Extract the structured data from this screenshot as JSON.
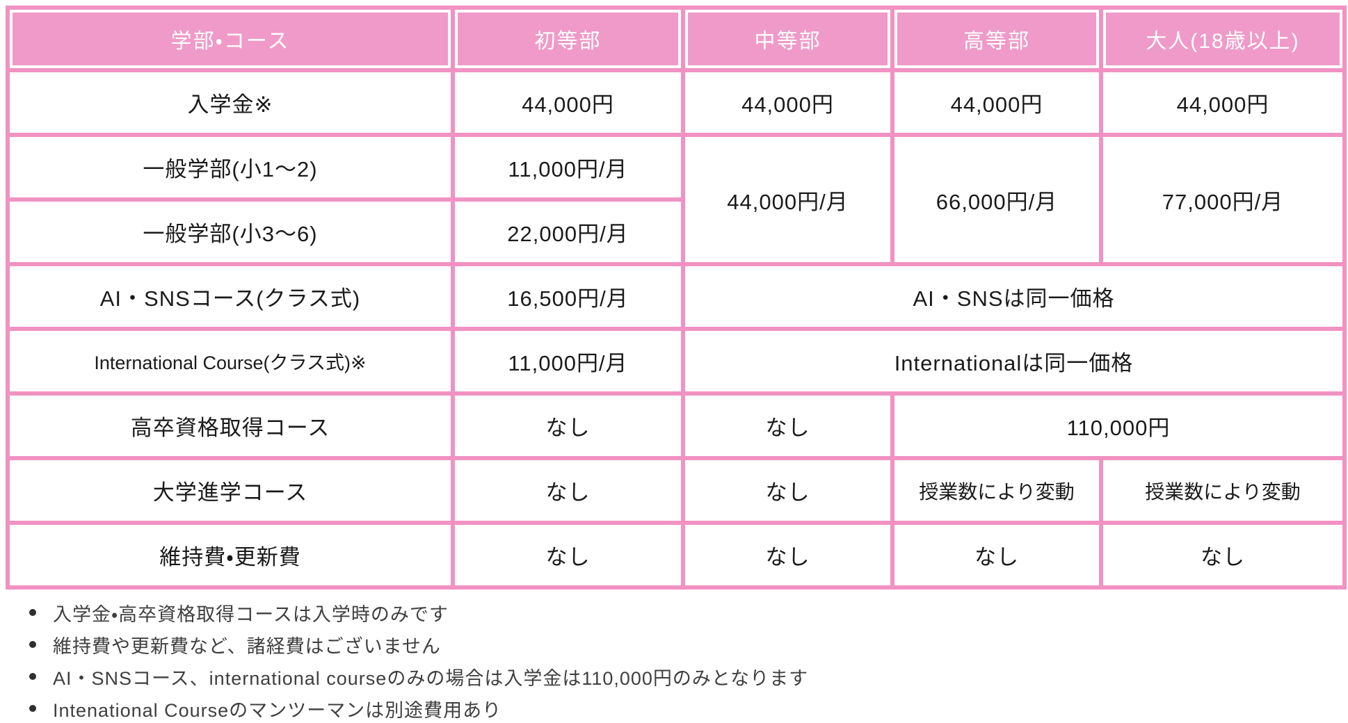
{
  "table": {
    "columns": [
      "学部・コース",
      "初等部",
      "中等部",
      "高等部",
      "大人(18歳以上)"
    ],
    "rows": [
      {
        "label": "入学金※",
        "cells": [
          "44,000円",
          "44,000円",
          "44,000円",
          "44,000円"
        ]
      },
      {
        "label": "一般学部(小1〜2)",
        "cells": [
          "11,000円/月",
          "44,000円/月",
          "66,000円/月",
          "77,000円/月"
        ]
      },
      {
        "label": "一般学部(小3〜6)",
        "cells": [
          "22,000円/月"
        ]
      },
      {
        "label": "AI・SNSコース(クラス式)",
        "cells": [
          "16,500円/月",
          "AI・SNSは同一価格"
        ]
      },
      {
        "label": "International Course(クラス式)※",
        "cells": [
          "11,000円/月",
          "Internationalは同一価格"
        ]
      },
      {
        "label": "高卒資格取得コース",
        "cells": [
          "なし",
          "なし",
          "110,000円"
        ]
      },
      {
        "label": "大学進学コース",
        "cells": [
          "なし",
          "なし",
          "授業数により変動",
          "授業数により変動"
        ]
      },
      {
        "label": "維持費・更新費",
        "cells": [
          "なし",
          "なし",
          "なし",
          "なし"
        ]
      }
    ]
  },
  "notes": [
    "入学金・高卒資格取得コースは入学時のみです",
    "維持費や更新費など、諸経費はございません",
    "AI・SNSコース、international courseのみの場合は入学金は110,000円のみとなります",
    "Intenational Courseのマンツーマンは別途費用あり"
  ],
  "colors": {
    "header_bg": "#EF9AC8",
    "grid_border": "#F192C3",
    "header_text": "#FFFFFF",
    "cell_text": "#1A1A1A",
    "note_text": "#3F3F3F"
  }
}
